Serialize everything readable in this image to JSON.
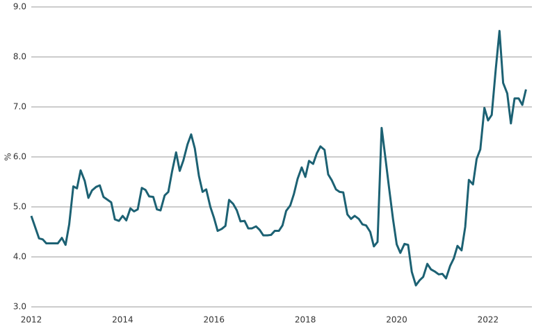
{
  "chart_data": {
    "type": "line",
    "y_label": "%",
    "x": [
      2012.0,
      2012.17,
      2012.25,
      2012.33,
      2012.58,
      2012.67,
      2012.75,
      2012.83,
      2012.92,
      2013.0,
      2013.08,
      2013.17,
      2013.25,
      2013.33,
      2013.42,
      2013.5,
      2013.58,
      2013.75,
      2013.83,
      2013.92,
      2014.0,
      2014.08,
      2014.17,
      2014.25,
      2014.33,
      2014.42,
      2014.5,
      2014.58,
      2014.67,
      2014.75,
      2014.83,
      2014.92,
      2015.0,
      2015.08,
      2015.17,
      2015.25,
      2015.33,
      2015.42,
      2015.5,
      2015.58,
      2015.67,
      2015.75,
      2015.83,
      2015.92,
      2016.0,
      2016.08,
      2016.17,
      2016.25,
      2016.33,
      2016.42,
      2016.5,
      2016.58,
      2016.67,
      2016.75,
      2016.83,
      2016.92,
      2017.0,
      2017.08,
      2017.17,
      2017.25,
      2017.33,
      2017.42,
      2017.5,
      2017.58,
      2017.67,
      2017.75,
      2017.83,
      2017.92,
      2018.0,
      2018.08,
      2018.17,
      2018.25,
      2018.33,
      2018.42,
      2018.5,
      2018.58,
      2018.67,
      2018.75,
      2018.83,
      2018.92,
      2019.0,
      2019.08,
      2019.17,
      2019.25,
      2019.33,
      2019.42,
      2019.5,
      2019.58,
      2019.67,
      2019.75,
      2019.83,
      2019.92,
      2020.0,
      2020.08,
      2020.17,
      2020.25,
      2020.33,
      2020.42,
      2020.5,
      2020.58,
      2020.67,
      2020.75,
      2020.83,
      2020.92,
      2021.0,
      2021.08,
      2021.17,
      2021.25,
      2021.33,
      2021.42,
      2021.5,
      2021.58,
      2021.67,
      2021.75,
      2021.83,
      2021.92,
      2022.0,
      2022.08,
      2022.17,
      2022.25,
      2022.33,
      2022.42,
      2022.5,
      2022.58,
      2022.67,
      2022.75,
      2022.83
    ],
    "series": [
      {
        "color": "#1c6173",
        "values": [
          4.82,
          4.37,
          4.35,
          4.27,
          4.27,
          4.38,
          4.24,
          4.65,
          5.41,
          5.37,
          5.73,
          5.52,
          5.18,
          5.33,
          5.4,
          5.43,
          5.2,
          5.09,
          4.75,
          4.72,
          4.82,
          4.73,
          4.97,
          4.91,
          4.95,
          5.38,
          5.34,
          5.21,
          5.2,
          4.95,
          4.93,
          5.23,
          5.3,
          5.7,
          6.09,
          5.72,
          5.93,
          6.25,
          6.45,
          6.17,
          5.62,
          5.3,
          5.35,
          5.0,
          4.78,
          4.52,
          4.56,
          4.62,
          5.14,
          5.06,
          4.93,
          4.71,
          4.72,
          4.57,
          4.57,
          4.61,
          4.54,
          4.43,
          4.43,
          4.44,
          4.52,
          4.52,
          4.63,
          4.92,
          5.03,
          5.26,
          5.56,
          5.79,
          5.6,
          5.92,
          5.86,
          6.07,
          6.21,
          6.14,
          5.65,
          5.53,
          5.35,
          5.3,
          5.29,
          4.85,
          4.76,
          4.82,
          4.76,
          4.65,
          4.63,
          4.5,
          4.21,
          4.3,
          6.58,
          6.0,
          5.4,
          4.75,
          4.25,
          4.08,
          4.26,
          4.24,
          3.7,
          3.43,
          3.53,
          3.6,
          3.86,
          3.75,
          3.71,
          3.65,
          3.66,
          3.57,
          3.82,
          3.97,
          4.22,
          4.13,
          4.6,
          5.54,
          5.45,
          5.96,
          6.15,
          6.98,
          6.73,
          6.84,
          7.77,
          8.52,
          7.48,
          7.27,
          6.67,
          7.17,
          7.17,
          7.04,
          7.35
        ]
      }
    ],
    "xlim": [
      2012,
      2022.96
    ],
    "xticks": [
      2012,
      2014,
      2016,
      2018,
      2020,
      2022
    ],
    "ylim": [
      3,
      9
    ],
    "yticks": [
      {
        "value": 3,
        "label": "3.0"
      },
      {
        "value": 4,
        "label": "4.0"
      },
      {
        "value": 5,
        "label": "5.0"
      },
      {
        "value": 6,
        "label": "6.0"
      },
      {
        "value": 7,
        "label": "7.0"
      },
      {
        "value": 8,
        "label": "8.0"
      },
      {
        "value": 9,
        "label": "9.0"
      }
    ],
    "grid": true
  }
}
